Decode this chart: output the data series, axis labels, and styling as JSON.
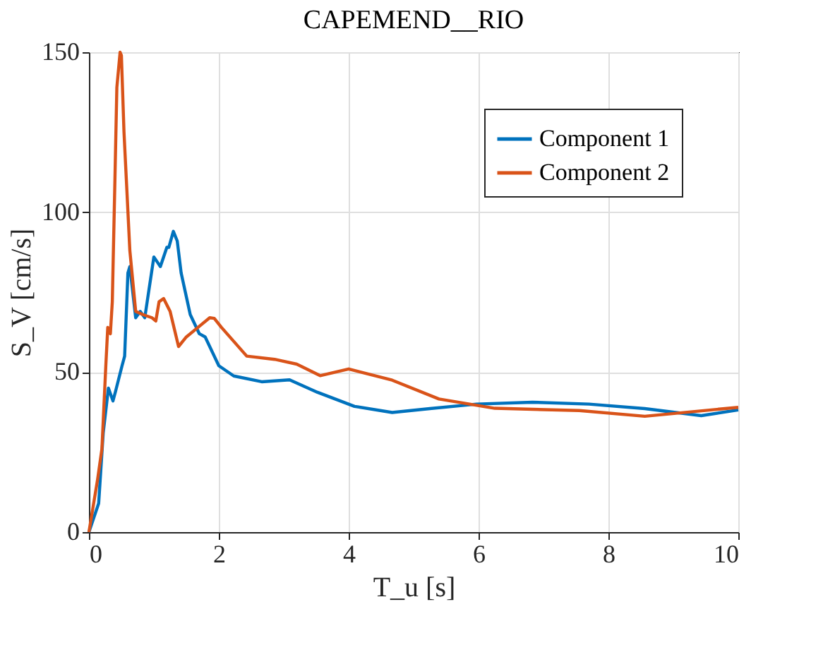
{
  "chart_data": {
    "type": "line",
    "title": "CAPEMEND__RIO",
    "xlabel": "T_u [s]",
    "ylabel": "S_V [cm/s]",
    "xlim": [
      0,
      10
    ],
    "xticks": [
      0,
      2,
      4,
      6,
      8,
      10
    ],
    "ylim": [
      0,
      150
    ],
    "yticks": [
      0,
      50,
      100,
      150
    ],
    "grid": true,
    "legend": "top right",
    "line_style": "solid",
    "series": [
      {
        "name": "Component 1",
        "color": "#0072bd",
        "x": [
          0,
          0.15,
          0.22,
          0.3,
          0.37,
          0.41,
          0.51,
          0.55,
          0.6,
          0.63,
          0.72,
          0.79,
          0.86,
          1.0,
          1.1,
          1.2,
          1.23,
          1.3,
          1.36,
          1.42,
          1.56,
          1.7,
          1.79,
          2.0,
          2.23,
          2.66,
          3.09,
          3.52,
          4.09,
          4.67,
          5.25,
          5.97,
          6.83,
          7.7,
          8.56,
          9.43,
          10
        ],
        "values": [
          0,
          9,
          31,
          45,
          41,
          44,
          52,
          55,
          81,
          83,
          67,
          69,
          67,
          86,
          83,
          89,
          89,
          94,
          91,
          81,
          68,
          62,
          61,
          52,
          48.8,
          47,
          47.6,
          43.7,
          39.3,
          37.4,
          38.6,
          40,
          40.6,
          40,
          38.6,
          36.4,
          38.2
        ]
      },
      {
        "name": "Component 2",
        "color": "#d95319",
        "x": [
          0,
          0.13,
          0.2,
          0.26,
          0.29,
          0.33,
          0.36,
          0.4,
          0.43,
          0.48,
          0.5,
          0.54,
          0.63,
          0.72,
          0.83,
          0.97,
          1.03,
          1.08,
          1.15,
          1.25,
          1.38,
          1.5,
          1.68,
          1.86,
          1.93,
          2.04,
          2.43,
          2.86,
          3.2,
          3.56,
          4.0,
          4.67,
          5.39,
          6.25,
          7.55,
          8.56,
          10
        ],
        "values": [
          0,
          16,
          26,
          52,
          64,
          62,
          72,
          110,
          139,
          150,
          149,
          125,
          88,
          69,
          68,
          67,
          66,
          72,
          73,
          69,
          58,
          61,
          64,
          67,
          66.8,
          64,
          55,
          54,
          52.5,
          48.9,
          51,
          47.5,
          41.6,
          38.7,
          38,
          36.2,
          39
        ]
      }
    ]
  }
}
